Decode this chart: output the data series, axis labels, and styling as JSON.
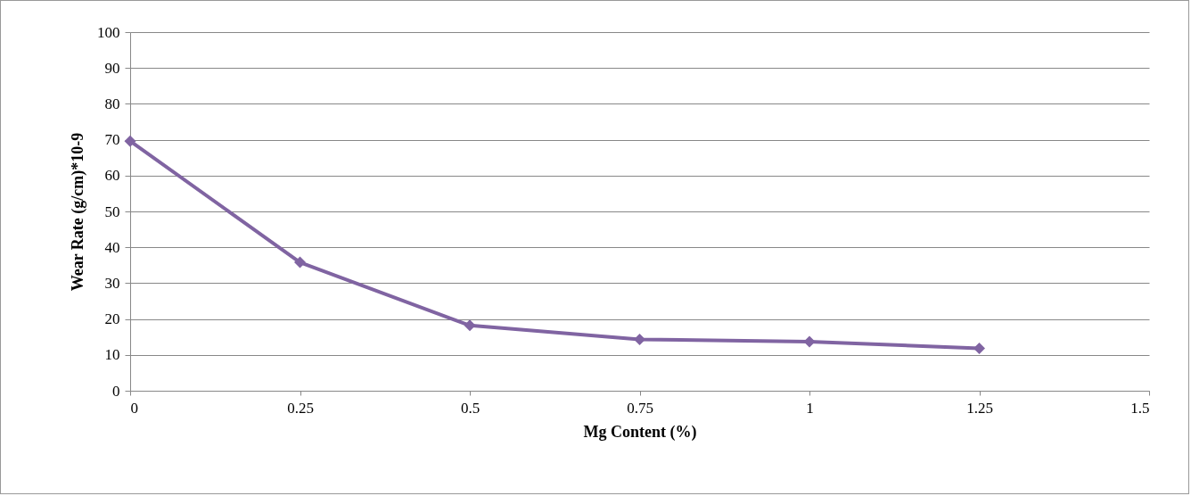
{
  "chart_data": {
    "type": "line",
    "xlabel": "Mg Content (%)",
    "ylabel": "Wear Rate (g/cm)*10-9",
    "x": [
      0,
      0.25,
      0.5,
      0.75,
      1,
      1.25
    ],
    "series": [
      {
        "color": "#8064a2",
        "values": [
          69.6,
          35.8,
          18.2,
          14.3,
          13.7,
          11.8
        ]
      }
    ],
    "xlim": [
      0,
      1.5
    ],
    "xticks": [
      0,
      0.25,
      0.5,
      0.75,
      1,
      1.25,
      1.5
    ],
    "ylim": [
      0,
      100
    ],
    "yticks": [
      0,
      10,
      20,
      30,
      40,
      50,
      60,
      70,
      80,
      90,
      100
    ],
    "grid": "y",
    "marker": "diamond",
    "line_style": "solid"
  }
}
